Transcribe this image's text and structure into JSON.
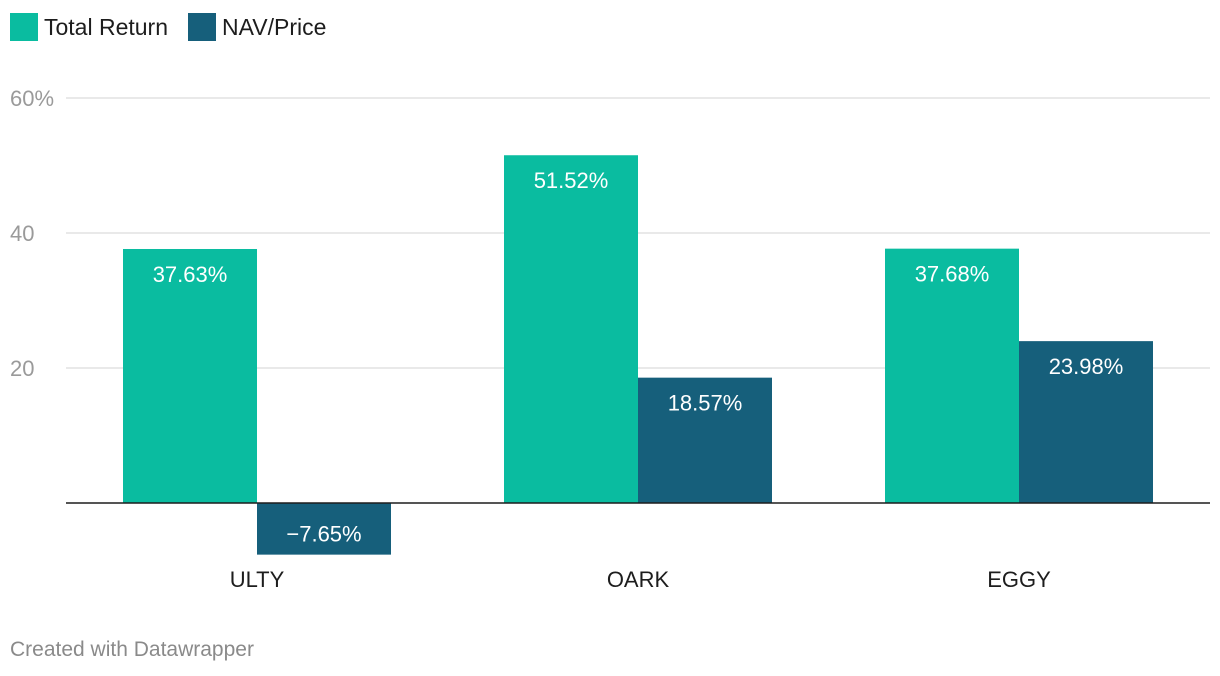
{
  "chart_data": {
    "type": "bar",
    "categories": [
      "ULTY",
      "OARK",
      "EGGY"
    ],
    "series": [
      {
        "name": "Total Return",
        "color": "#0abca0",
        "values": [
          37.63,
          51.52,
          37.68
        ],
        "labels": [
          "37.63%",
          "51.52%",
          "37.68%"
        ]
      },
      {
        "name": "NAV/Price",
        "color": "#165f7b",
        "values": [
          -7.65,
          18.57,
          23.98
        ],
        "labels": [
          "−7.65%",
          "18.57%",
          "23.98%"
        ]
      }
    ],
    "y_ticks": [
      {
        "value": 60,
        "label": "60%"
      },
      {
        "value": 40,
        "label": "40"
      },
      {
        "value": 20,
        "label": "20"
      }
    ],
    "ylim": [
      -10,
      60
    ],
    "grid": true,
    "legend_position": "top-left",
    "title": "",
    "xlabel": "",
    "ylabel": ""
  },
  "footer": {
    "credit": "Created with Datawrapper"
  }
}
